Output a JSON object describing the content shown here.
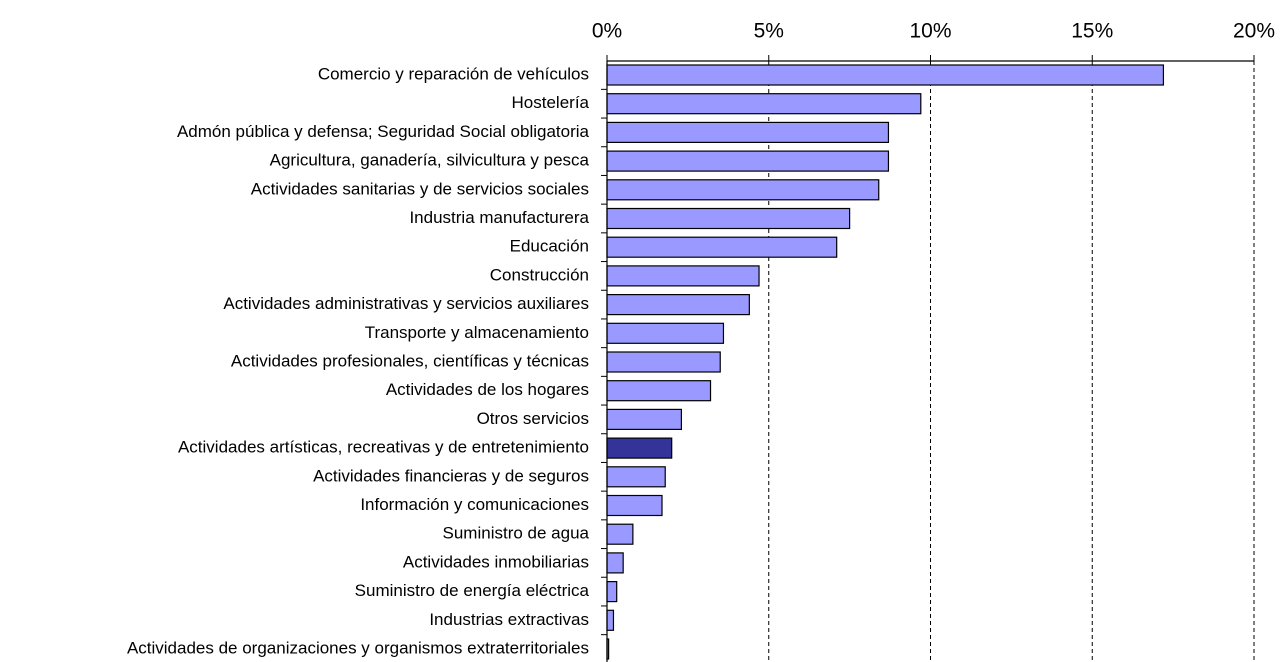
{
  "chart_data": {
    "type": "barh",
    "categories": [
      "Comercio y reparación de vehículos",
      "Hostelería",
      "Admón pública y defensa; Seguridad Social obligatoria",
      "Agricultura, ganadería, silvicultura y pesca",
      "Actividades sanitarias y de servicios sociales",
      "Industria manufacturera",
      "Educación",
      "Construcción",
      "Actividades administrativas y servicios auxiliares",
      "Transporte y almacenamiento",
      "Actividades profesionales, científicas y técnicas",
      "Actividades de los hogares",
      "Otros servicios",
      "Actividades artísticas, recreativas y de entretenimiento",
      "Actividades financieras y de seguros",
      "Información y comunicaciones",
      "Suministro de agua",
      "Actividades inmobiliarias",
      "Suministro de energía eléctrica",
      "Industrias extractivas",
      "Actividades de organizaciones y organismos extraterritoriales"
    ],
    "values": [
      17.2,
      9.7,
      8.7,
      8.7,
      8.4,
      7.5,
      7.1,
      4.7,
      4.4,
      3.6,
      3.5,
      3.2,
      2.3,
      2.0,
      1.8,
      1.7,
      0.8,
      0.5,
      0.3,
      0.2,
      0.05
    ],
    "colors": [
      "#9999ff",
      "#9999ff",
      "#9999ff",
      "#9999ff",
      "#9999ff",
      "#9999ff",
      "#9999ff",
      "#9999ff",
      "#9999ff",
      "#9999ff",
      "#9999ff",
      "#9999ff",
      "#9999ff",
      "#333399",
      "#9999ff",
      "#9999ff",
      "#9999ff",
      "#9999ff",
      "#9999ff",
      "#9999ff",
      "#9999ff"
    ],
    "xlim": [
      0,
      20
    ],
    "xticks": [
      {
        "value": 0,
        "label": "0%"
      },
      {
        "value": 5,
        "label": "5%"
      },
      {
        "value": 10,
        "label": "10%"
      },
      {
        "value": 15,
        "label": "15%"
      },
      {
        "value": 20,
        "label": "20%"
      }
    ],
    "grid": true
  }
}
